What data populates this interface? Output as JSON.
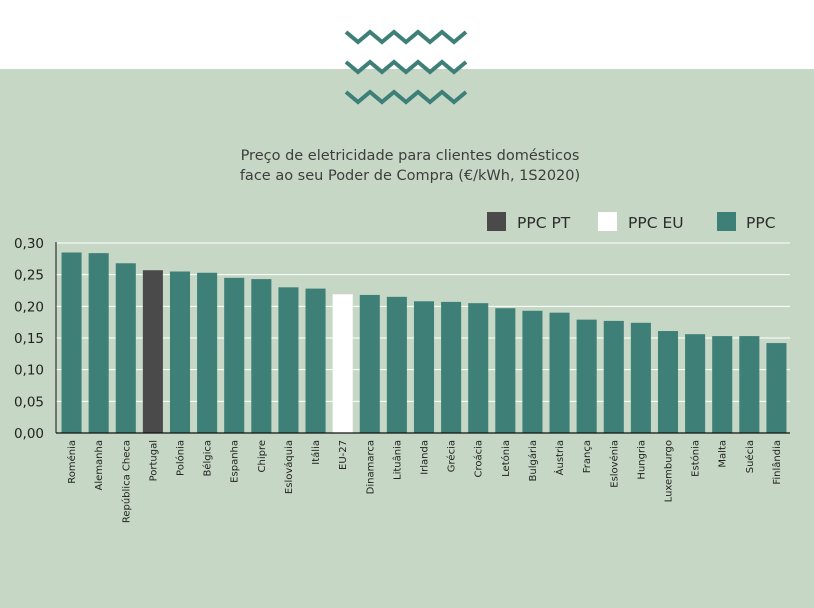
{
  "colors": {
    "panel_bg": "#c6d8c5",
    "zigzag": "#3e7f78",
    "ppc": "#3e7f78",
    "ppc_pt": "#4a4a4b",
    "ppc_eu": "#ffffff",
    "gridline": "#ffffff",
    "axis": "#111111"
  },
  "chart_data": {
    "type": "bar",
    "title_lines": [
      "Preço de eletricidade para clientes domésticos",
      "face ao seu Poder de Compra (€/kWh, 1S2020)"
    ],
    "legend": [
      {
        "label": "PPC PT",
        "color_key": "ppc_pt"
      },
      {
        "label": "PPC EU",
        "color_key": "ppc_eu"
      },
      {
        "label": "PPC",
        "color_key": "ppc"
      }
    ],
    "categories": [
      "Roménia",
      "Alemanha",
      "República Checa",
      "Portugal",
      "Polónia",
      "Bélgica",
      "Espanha",
      "Chipre",
      "Eslováquia",
      "Itália",
      "EU-27",
      "Dinamarca",
      "Lituânia",
      "Irlanda",
      "Grécia",
      "Croácia",
      "Letónia",
      "Bulgária",
      "Áustria",
      "França",
      "Eslovénia",
      "Hungria",
      "Luxemburgo",
      "Estónia",
      "Malta",
      "Suécia",
      "Finlândia"
    ],
    "values": [
      0.285,
      0.284,
      0.268,
      0.257,
      0.255,
      0.253,
      0.245,
      0.243,
      0.23,
      0.228,
      0.219,
      0.218,
      0.215,
      0.208,
      0.207,
      0.205,
      0.197,
      0.193,
      0.19,
      0.179,
      0.177,
      0.174,
      0.161,
      0.156,
      0.153,
      0.153,
      0.142
    ],
    "series_keys": [
      "ppc",
      "ppc",
      "ppc",
      "ppc_pt",
      "ppc",
      "ppc",
      "ppc",
      "ppc",
      "ppc",
      "ppc",
      "ppc_eu",
      "ppc",
      "ppc",
      "ppc",
      "ppc",
      "ppc",
      "ppc",
      "ppc",
      "ppc",
      "ppc",
      "ppc",
      "ppc",
      "ppc",
      "ppc",
      "ppc",
      "ppc",
      "ppc"
    ],
    "yticks": [
      "0,00",
      "0,05",
      "0,10",
      "0,15",
      "0,20",
      "0,25",
      "0,30"
    ],
    "ylim": [
      0,
      0.3
    ],
    "grid": true
  }
}
